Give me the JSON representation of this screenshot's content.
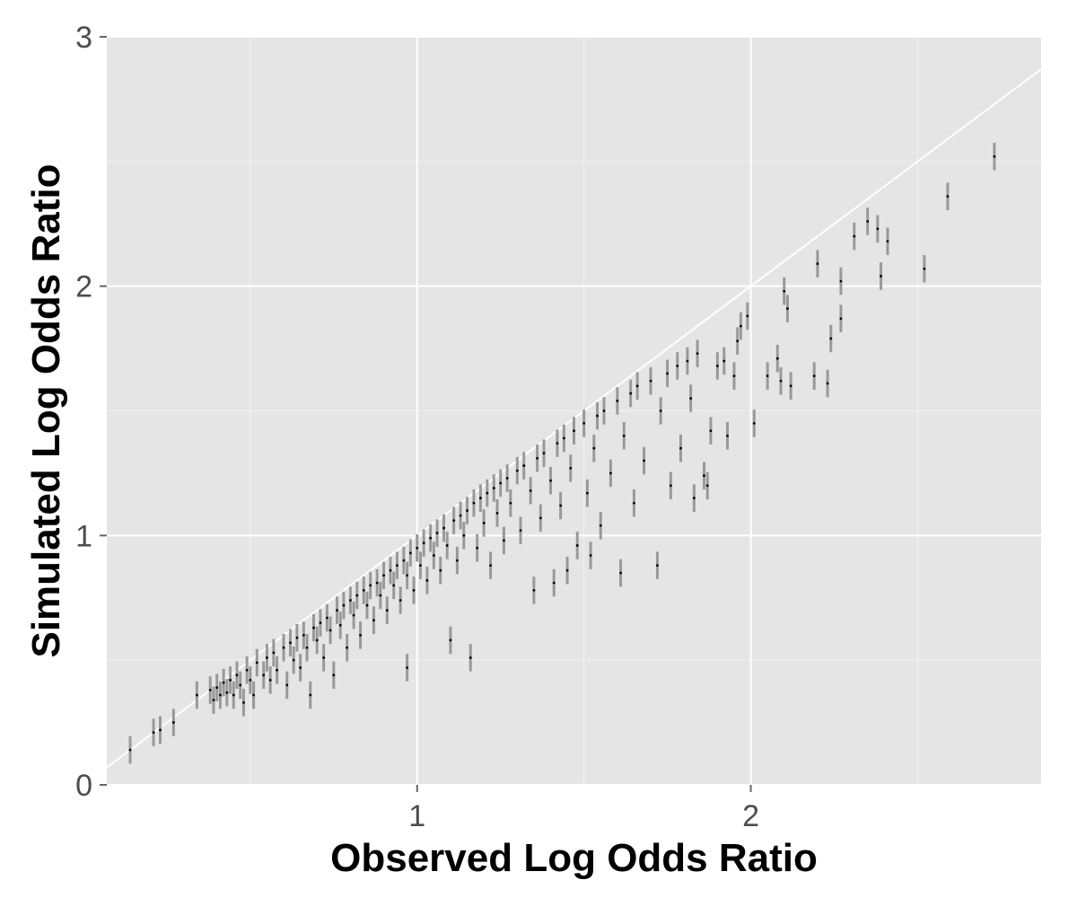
{
  "chart_data": {
    "type": "scatter",
    "title": "",
    "xlabel": "Observed Log Odds Ratio",
    "ylabel": "Simulated Log Odds Ratio",
    "xlim": [
      0.07,
      2.87
    ],
    "ylim": [
      0,
      3
    ],
    "x_ticks": [
      1,
      2
    ],
    "x_tick_labels": [
      "1",
      "2"
    ],
    "y_ticks": [
      0,
      1,
      2,
      3
    ],
    "y_tick_labels": [
      "0",
      "1",
      "2",
      "3"
    ],
    "grid": true,
    "legend": "none",
    "reference_line": {
      "slope": 1,
      "intercept": 0
    },
    "error_bar_halfwidth": 0.055,
    "points": [
      [
        0.14,
        0.14
      ],
      [
        0.21,
        0.21
      ],
      [
        0.23,
        0.22
      ],
      [
        0.27,
        0.25
      ],
      [
        0.34,
        0.36
      ],
      [
        0.38,
        0.38
      ],
      [
        0.39,
        0.34
      ],
      [
        0.4,
        0.39
      ],
      [
        0.41,
        0.36
      ],
      [
        0.42,
        0.41
      ],
      [
        0.43,
        0.37
      ],
      [
        0.44,
        0.42
      ],
      [
        0.45,
        0.36
      ],
      [
        0.46,
        0.44
      ],
      [
        0.47,
        0.4
      ],
      [
        0.48,
        0.33
      ],
      [
        0.49,
        0.46
      ],
      [
        0.5,
        0.42
      ],
      [
        0.51,
        0.36
      ],
      [
        0.52,
        0.49
      ],
      [
        0.54,
        0.44
      ],
      [
        0.55,
        0.51
      ],
      [
        0.56,
        0.42
      ],
      [
        0.57,
        0.53
      ],
      [
        0.58,
        0.46
      ],
      [
        0.6,
        0.55
      ],
      [
        0.61,
        0.4
      ],
      [
        0.62,
        0.57
      ],
      [
        0.63,
        0.5
      ],
      [
        0.64,
        0.59
      ],
      [
        0.65,
        0.47
      ],
      [
        0.66,
        0.6
      ],
      [
        0.67,
        0.55
      ],
      [
        0.68,
        0.36
      ],
      [
        0.69,
        0.63
      ],
      [
        0.7,
        0.58
      ],
      [
        0.71,
        0.65
      ],
      [
        0.72,
        0.51
      ],
      [
        0.73,
        0.67
      ],
      [
        0.74,
        0.62
      ],
      [
        0.75,
        0.44
      ],
      [
        0.76,
        0.7
      ],
      [
        0.77,
        0.64
      ],
      [
        0.78,
        0.72
      ],
      [
        0.79,
        0.55
      ],
      [
        0.8,
        0.74
      ],
      [
        0.81,
        0.68
      ],
      [
        0.82,
        0.76
      ],
      [
        0.83,
        0.6
      ],
      [
        0.84,
        0.78
      ],
      [
        0.85,
        0.72
      ],
      [
        0.86,
        0.8
      ],
      [
        0.87,
        0.66
      ],
      [
        0.88,
        0.81
      ],
      [
        0.89,
        0.76
      ],
      [
        0.9,
        0.84
      ],
      [
        0.91,
        0.7
      ],
      [
        0.92,
        0.86
      ],
      [
        0.93,
        0.8
      ],
      [
        0.94,
        0.88
      ],
      [
        0.95,
        0.74
      ],
      [
        0.96,
        0.9
      ],
      [
        0.97,
        0.84
      ],
      [
        0.97,
        0.47
      ],
      [
        0.98,
        0.93
      ],
      [
        0.99,
        0.78
      ],
      [
        1.0,
        0.95
      ],
      [
        1.01,
        0.88
      ],
      [
        1.02,
        0.97
      ],
      [
        1.03,
        0.82
      ],
      [
        1.04,
        0.99
      ],
      [
        1.05,
        0.92
      ],
      [
        1.06,
        1.01
      ],
      [
        1.07,
        0.86
      ],
      [
        1.08,
        1.03
      ],
      [
        1.09,
        0.96
      ],
      [
        1.1,
        0.58
      ],
      [
        1.11,
        1.06
      ],
      [
        1.12,
        0.9
      ],
      [
        1.13,
        1.08
      ],
      [
        1.14,
        1.0
      ],
      [
        1.15,
        1.1
      ],
      [
        1.16,
        0.51
      ],
      [
        1.17,
        1.13
      ],
      [
        1.18,
        0.95
      ],
      [
        1.19,
        1.15
      ],
      [
        1.2,
        1.05
      ],
      [
        1.21,
        1.17
      ],
      [
        1.22,
        0.88
      ],
      [
        1.23,
        1.19
      ],
      [
        1.24,
        1.09
      ],
      [
        1.25,
        1.21
      ],
      [
        1.26,
        0.98
      ],
      [
        1.27,
        1.23
      ],
      [
        1.28,
        1.13
      ],
      [
        1.3,
        1.26
      ],
      [
        1.31,
        1.02
      ],
      [
        1.32,
        1.28
      ],
      [
        1.34,
        1.18
      ],
      [
        1.35,
        0.78
      ],
      [
        1.36,
        1.31
      ],
      [
        1.37,
        1.07
      ],
      [
        1.38,
        1.33
      ],
      [
        1.4,
        1.22
      ],
      [
        1.41,
        0.81
      ],
      [
        1.42,
        1.37
      ],
      [
        1.43,
        1.12
      ],
      [
        1.44,
        1.39
      ],
      [
        1.45,
        0.86
      ],
      [
        1.46,
        1.27
      ],
      [
        1.47,
        1.42
      ],
      [
        1.48,
        0.96
      ],
      [
        1.5,
        1.45
      ],
      [
        1.51,
        1.17
      ],
      [
        1.52,
        0.92
      ],
      [
        1.53,
        1.35
      ],
      [
        1.54,
        1.48
      ],
      [
        1.55,
        1.04
      ],
      [
        1.56,
        1.5
      ],
      [
        1.58,
        1.25
      ],
      [
        1.6,
        1.54
      ],
      [
        1.61,
        0.85
      ],
      [
        1.62,
        1.4
      ],
      [
        1.64,
        1.57
      ],
      [
        1.65,
        1.13
      ],
      [
        1.66,
        1.6
      ],
      [
        1.68,
        1.3
      ],
      [
        1.7,
        1.62
      ],
      [
        1.72,
        0.88
      ],
      [
        1.73,
        1.5
      ],
      [
        1.75,
        1.65
      ],
      [
        1.76,
        1.2
      ],
      [
        1.78,
        1.68
      ],
      [
        1.79,
        1.35
      ],
      [
        1.81,
        1.7
      ],
      [
        1.82,
        1.55
      ],
      [
        1.83,
        1.15
      ],
      [
        1.84,
        1.73
      ],
      [
        1.86,
        1.24
      ],
      [
        1.87,
        1.2
      ],
      [
        1.88,
        1.42
      ],
      [
        1.9,
        1.68
      ],
      [
        1.92,
        1.7
      ],
      [
        1.93,
        1.4
      ],
      [
        1.95,
        1.64
      ],
      [
        1.96,
        1.78
      ],
      [
        1.97,
        1.84
      ],
      [
        1.99,
        1.88
      ],
      [
        2.01,
        1.45
      ],
      [
        2.05,
        1.64
      ],
      [
        2.08,
        1.71
      ],
      [
        2.09,
        1.62
      ],
      [
        2.1,
        1.98
      ],
      [
        2.11,
        1.91
      ],
      [
        2.12,
        1.6
      ],
      [
        2.19,
        1.64
      ],
      [
        2.2,
        2.09
      ],
      [
        2.23,
        1.61
      ],
      [
        2.24,
        1.79
      ],
      [
        2.27,
        2.02
      ],
      [
        2.27,
        1.87
      ],
      [
        2.31,
        2.2
      ],
      [
        2.35,
        2.26
      ],
      [
        2.38,
        2.23
      ],
      [
        2.39,
        2.04
      ],
      [
        2.41,
        2.18
      ],
      [
        2.52,
        2.07
      ],
      [
        2.59,
        2.36
      ],
      [
        2.73,
        2.52
      ]
    ]
  }
}
